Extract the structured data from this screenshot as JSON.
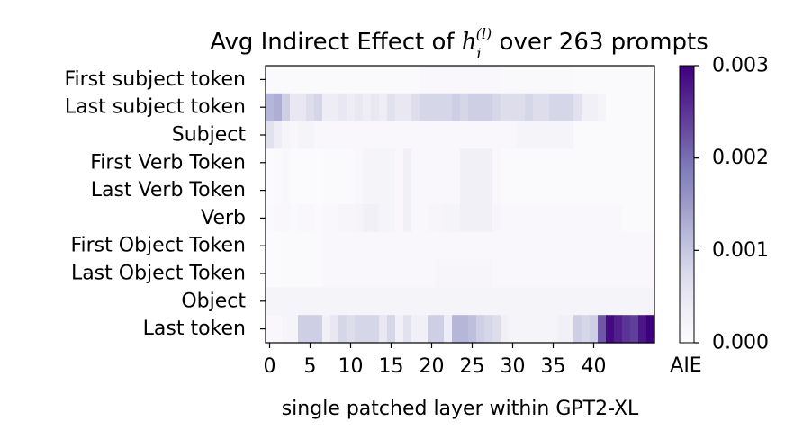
{
  "chart_data": {
    "type": "heatmap",
    "title": {
      "prefix": "Avg Indirect Effect of ",
      "var": "h",
      "subscript": "i",
      "superscript": "(l)",
      "suffix": " over 263 prompts"
    },
    "xlabel": "single patched layer within GPT2-XL",
    "rows": [
      "First subject token",
      "Last subject token",
      "Subject",
      "First Verb Token",
      "Last Verb Token",
      "Verb",
      "First Object Token",
      "Last Object Token",
      "Object",
      "Last token"
    ],
    "x_ticks": [
      0,
      5,
      10,
      15,
      20,
      25,
      30,
      35,
      40
    ],
    "n_layers": 48,
    "colormap": "Purples",
    "colorbar": {
      "label": "AIE",
      "min": 0.0,
      "max": 0.003,
      "ticks": [
        "0.000",
        "0.001",
        "0.002",
        "0.003"
      ]
    },
    "values": [
      [
        5e-05,
        5e-05,
        5e-05,
        5e-05,
        5e-05,
        5e-05,
        5e-05,
        5e-05,
        5e-05,
        5e-05,
        5e-05,
        5e-05,
        5e-05,
        5e-05,
        5e-05,
        5e-05,
        5e-05,
        5e-05,
        5e-05,
        0.0001,
        0.0001,
        0.0001,
        0.0001,
        0.0001,
        0.0001,
        0.0001,
        0.0001,
        0.0001,
        0.0001,
        8e-05,
        8e-05,
        8e-05,
        8e-05,
        8e-05,
        8e-05,
        8e-05,
        8e-05,
        8e-05,
        5e-05,
        5e-05,
        5e-05,
        5e-05,
        5e-05,
        5e-05,
        5e-05,
        5e-05,
        5e-05,
        5e-05
      ],
      [
        0.0012,
        0.0013,
        0.0009,
        0.0005,
        0.0005,
        0.0007,
        0.0008,
        0.0004,
        0.0004,
        0.0005,
        0.0004,
        0.0005,
        0.0004,
        0.0005,
        0.0004,
        0.0006,
        0.0005,
        0.0005,
        0.0007,
        0.0008,
        0.0008,
        0.0008,
        0.0008,
        0.0009,
        0.0008,
        0.0009,
        0.0009,
        0.0009,
        0.0008,
        0.0007,
        0.0007,
        0.0007,
        0.0008,
        0.0007,
        0.0007,
        0.0008,
        0.0008,
        0.0008,
        0.0006,
        0.0003,
        0.0003,
        0.0002,
        5e-05,
        5e-05,
        5e-05,
        5e-05,
        5e-05,
        5e-05
      ],
      [
        0.0006,
        0.0004,
        0.0002,
        0.0001,
        0.0002,
        0.0002,
        0.0001,
        0.0001,
        0.0001,
        0.0001,
        0.0001,
        0.0001,
        0.0001,
        0.0001,
        0.0001,
        0.0001,
        0.0001,
        0.0001,
        0.0001,
        0.0001,
        0.0001,
        0.0001,
        0.0001,
        0.0001,
        0.0001,
        0.0001,
        0.0001,
        0.0001,
        0.0001,
        0.0001,
        0.0001,
        0.0002,
        0.0002,
        0.0002,
        0.0002,
        0.0002,
        0.0002,
        0.0002,
        5e-05,
        5e-05,
        5e-05,
        5e-05,
        5e-05,
        5e-05,
        5e-05,
        5e-05,
        5e-05,
        5e-05
      ],
      [
        2e-05,
        5e-05,
        0.0001,
        2e-05,
        2e-05,
        2e-05,
        2e-05,
        5e-05,
        5e-05,
        5e-05,
        5e-05,
        0.0001,
        0.0002,
        0.0002,
        0.0002,
        0.0002,
        0.0001,
        0.0003,
        0.0001,
        0.0001,
        0.0001,
        0.0001,
        0.0001,
        0.0001,
        0.0003,
        0.0003,
        0.0003,
        0.0003,
        0.0001,
        5e-05,
        5e-05,
        5e-05,
        5e-05,
        5e-05,
        5e-05,
        5e-05,
        5e-05,
        5e-05,
        5e-05,
        5e-05,
        5e-05,
        5e-05,
        5e-05,
        5e-05,
        5e-05,
        5e-05,
        5e-05,
        5e-05
      ],
      [
        2e-05,
        5e-05,
        0.0001,
        2e-05,
        2e-05,
        2e-05,
        2e-05,
        5e-05,
        5e-05,
        5e-05,
        5e-05,
        0.0001,
        0.0002,
        0.0002,
        0.0002,
        0.0002,
        0.0001,
        0.0003,
        0.0001,
        0.0001,
        0.0001,
        0.0001,
        0.0001,
        0.0001,
        0.0003,
        0.0003,
        0.0003,
        0.0003,
        0.0001,
        5e-05,
        5e-05,
        5e-05,
        5e-05,
        5e-05,
        5e-05,
        5e-05,
        5e-05,
        5e-05,
        5e-05,
        5e-05,
        5e-05,
        5e-05,
        5e-05,
        5e-05,
        5e-05,
        5e-05,
        5e-05,
        5e-05
      ],
      [
        5e-05,
        0.0001,
        0.0001,
        5e-05,
        0.0001,
        0.0001,
        5e-05,
        0.0001,
        0.0001,
        0.00015,
        0.00015,
        0.0002,
        0.0003,
        0.0003,
        0.0002,
        0.0002,
        0.0001,
        0.0003,
        0.0001,
        0.0001,
        0.00015,
        0.00015,
        0.0002,
        0.0002,
        0.0003,
        0.0003,
        0.0003,
        0.0003,
        0.00015,
        0.0001,
        0.0001,
        0.0001,
        0.0001,
        0.0001,
        0.0001,
        0.0001,
        0.0001,
        0.0001,
        0.0001,
        0.0001,
        0.0001,
        0.0001,
        0.0001,
        0.0001,
        5e-05,
        5e-05,
        5e-05,
        5e-05
      ],
      [
        3e-05,
        3e-05,
        5e-05,
        5e-05,
        5e-05,
        5e-05,
        5e-05,
        0.0001,
        0.0001,
        0.0001,
        0.0001,
        0.0001,
        0.0001,
        0.0001,
        0.0001,
        0.0001,
        0.0001,
        0.0001,
        0.0001,
        0.0001,
        0.0001,
        0.0001,
        0.0001,
        0.0001,
        0.0001,
        0.0001,
        0.0001,
        0.0001,
        0.0001,
        0.0001,
        0.0001,
        0.0001,
        0.0001,
        0.0001,
        0.0001,
        0.0001,
        0.0001,
        0.0001,
        0.0001,
        0.0001,
        0.0001,
        0.0001,
        0.0001,
        0.0001,
        0.0001,
        0.0001,
        0.0001,
        0.0001
      ],
      [
        3e-05,
        3e-05,
        5e-05,
        5e-05,
        5e-05,
        5e-05,
        5e-05,
        0.0001,
        0.0001,
        0.0001,
        0.0001,
        0.0001,
        0.0001,
        0.0001,
        0.0001,
        0.0001,
        0.0001,
        0.0001,
        0.0001,
        0.0001,
        0.0001,
        0.00015,
        0.00015,
        0.00015,
        0.00015,
        0.00015,
        0.00015,
        0.00015,
        0.0001,
        0.0001,
        0.0001,
        0.0001,
        0.0001,
        0.0001,
        0.0001,
        0.0001,
        0.0001,
        0.0001,
        0.0001,
        0.0001,
        0.0001,
        0.0001,
        0.0001,
        0.0001,
        0.0001,
        0.0001,
        0.0001,
        0.0001
      ],
      [
        0.0002,
        0.0002,
        0.0002,
        0.0002,
        0.0002,
        0.0002,
        0.0002,
        0.0002,
        0.0002,
        0.0002,
        0.0002,
        0.0002,
        0.0002,
        0.0002,
        0.0002,
        0.0002,
        0.0002,
        0.0002,
        0.0002,
        0.0002,
        0.0002,
        0.0002,
        0.0002,
        0.0002,
        0.0002,
        0.0002,
        0.0002,
        0.0002,
        0.0002,
        0.0002,
        0.0002,
        0.0002,
        0.0002,
        0.0002,
        0.0002,
        0.0002,
        0.0002,
        0.0002,
        0.0002,
        0.0002,
        0.0002,
        0.0002,
        0.0002,
        0.0002,
        0.0002,
        0.0002,
        0.0002,
        0.0002
      ],
      [
        0.0001,
        0.0001,
        0.0002,
        0.0002,
        0.0009,
        0.0009,
        0.0009,
        0.0003,
        0.0005,
        0.0008,
        0.0007,
        0.0008,
        0.0008,
        0.0008,
        0.0005,
        0.0008,
        0.0003,
        0.0006,
        0.0003,
        0.0003,
        0.0009,
        0.0009,
        0.0004,
        0.0012,
        0.0012,
        0.0011,
        0.0009,
        0.0008,
        0.0007,
        0.0003,
        0.0002,
        0.0002,
        0.0002,
        0.0002,
        0.0002,
        0.0002,
        0.0003,
        0.0003,
        0.0009,
        0.0008,
        0.0009,
        0.0022,
        0.0029,
        0.0027,
        0.0025,
        0.0024,
        0.0028,
        0.003
      ]
    ]
  }
}
